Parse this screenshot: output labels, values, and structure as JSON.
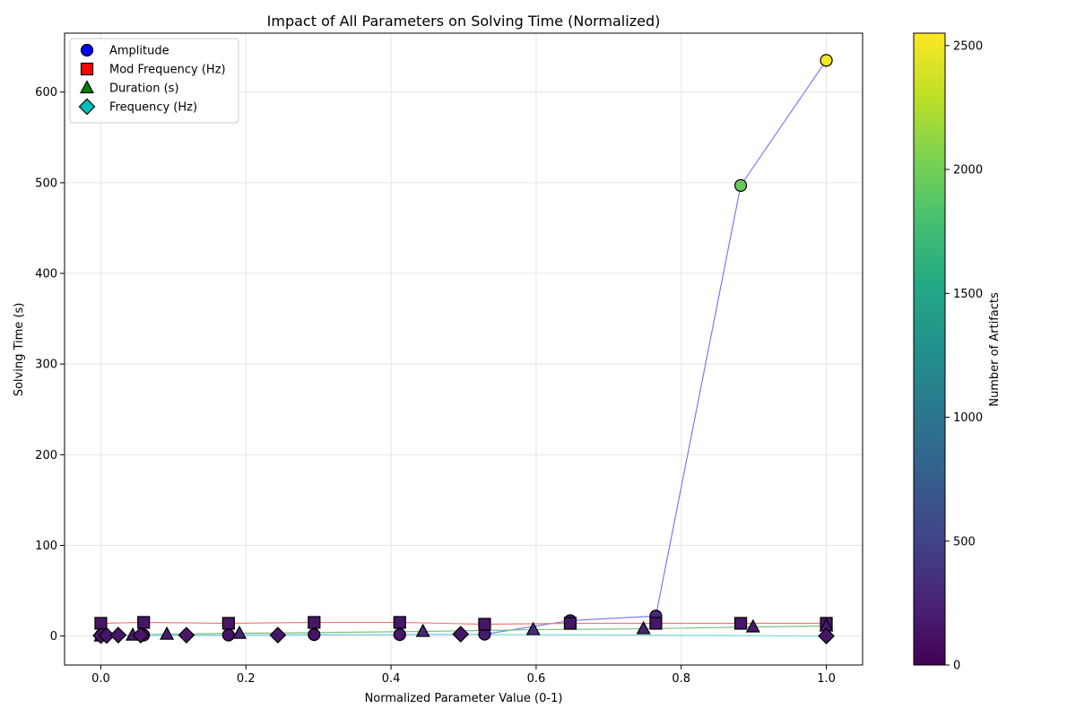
{
  "chart_data": {
    "type": "scatter",
    "title": "Impact of All Parameters on Solving Time (Normalized)",
    "xlabel": "Normalized Parameter Value (0-1)",
    "ylabel": "Solving Time (s)",
    "xlim": [
      -0.05,
      1.05
    ],
    "ylim": [
      -32,
      665
    ],
    "xticks": [
      0.0,
      0.2,
      0.4,
      0.6,
      0.8,
      1.0
    ],
    "xtick_labels": [
      "0.0",
      "0.2",
      "0.4",
      "0.6",
      "0.8",
      "1.0"
    ],
    "yticks": [
      0,
      100,
      200,
      300,
      400,
      500,
      600
    ],
    "ytick_labels": [
      "0",
      "100",
      "200",
      "300",
      "400",
      "500",
      "600"
    ],
    "grid": true,
    "legend_position": "top-left",
    "colorbar": {
      "label": "Number of Artifacts",
      "range": [
        0,
        2550
      ],
      "ticks": [
        0,
        500,
        1000,
        1500,
        2000,
        2500
      ],
      "tick_labels": [
        "0",
        "500",
        "1000",
        "1500",
        "2000",
        "2500"
      ],
      "colormap": "viridis"
    },
    "series": [
      {
        "name": "Amplitude",
        "marker": "circle",
        "legend_color": "#0000ff",
        "line_color": "#7b7bef",
        "points": [
          {
            "x": 0.0,
            "y": 0.5,
            "c": 60
          },
          {
            "x": 0.059,
            "y": 1,
            "c": 100
          },
          {
            "x": 0.176,
            "y": 1,
            "c": 120
          },
          {
            "x": 0.294,
            "y": 1.5,
            "c": 140
          },
          {
            "x": 0.412,
            "y": 1.5,
            "c": 160
          },
          {
            "x": 0.529,
            "y": 2,
            "c": 180
          },
          {
            "x": 0.647,
            "y": 17,
            "c": 250
          },
          {
            "x": 0.765,
            "y": 22,
            "c": 300
          },
          {
            "x": 0.882,
            "y": 497,
            "c": 1950
          },
          {
            "x": 1.0,
            "y": 635,
            "c": 2520
          }
        ]
      },
      {
        "name": "Mod Frequency (Hz)",
        "marker": "square",
        "legend_color": "#ff0000",
        "line_color": "#ef7b7b",
        "points": [
          {
            "x": 0.0,
            "y": 14,
            "c": 150
          },
          {
            "x": 0.059,
            "y": 15,
            "c": 150
          },
          {
            "x": 0.176,
            "y": 14,
            "c": 150
          },
          {
            "x": 0.294,
            "y": 15,
            "c": 150
          },
          {
            "x": 0.412,
            "y": 15,
            "c": 150
          },
          {
            "x": 0.529,
            "y": 13,
            "c": 150
          },
          {
            "x": 0.647,
            "y": 14,
            "c": 150
          },
          {
            "x": 0.765,
            "y": 14,
            "c": 150
          },
          {
            "x": 0.882,
            "y": 14,
            "c": 150
          },
          {
            "x": 1.0,
            "y": 14,
            "c": 150
          }
        ]
      },
      {
        "name": "Duration (s)",
        "marker": "triangle",
        "legend_color": "#008000",
        "line_color": "#7bbf7b",
        "points": [
          {
            "x": 0.0,
            "y": 0,
            "c": 150
          },
          {
            "x": 0.044,
            "y": 1,
            "c": 170
          },
          {
            "x": 0.091,
            "y": 2,
            "c": 200
          },
          {
            "x": 0.191,
            "y": 3,
            "c": 250
          },
          {
            "x": 0.444,
            "y": 5,
            "c": 300
          },
          {
            "x": 0.596,
            "y": 7,
            "c": 320
          },
          {
            "x": 0.748,
            "y": 8,
            "c": 250
          },
          {
            "x": 0.899,
            "y": 10,
            "c": 200
          },
          {
            "x": 1.0,
            "y": 11,
            "c": 180
          }
        ]
      },
      {
        "name": "Frequency (Hz)",
        "marker": "diamond",
        "legend_color": "#00bfbf",
        "line_color": "#7bdfdf",
        "points": [
          {
            "x": 0.0,
            "y": 0.5,
            "c": 150
          },
          {
            "x": 0.008,
            "y": 0.5,
            "c": 150
          },
          {
            "x": 0.024,
            "y": 1,
            "c": 150
          },
          {
            "x": 0.055,
            "y": 1,
            "c": 150
          },
          {
            "x": 0.118,
            "y": 1,
            "c": 150
          },
          {
            "x": 0.244,
            "y": 1,
            "c": 150
          },
          {
            "x": 0.496,
            "y": 2,
            "c": 150
          },
          {
            "x": 1.0,
            "y": 0,
            "c": 150
          }
        ]
      }
    ]
  }
}
